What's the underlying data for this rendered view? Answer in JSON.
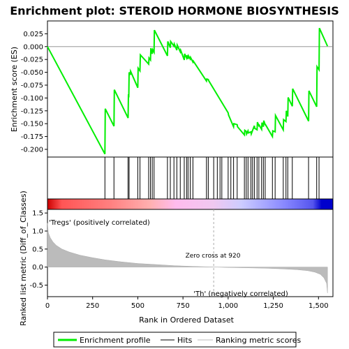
{
  "chart_data": {
    "type": "line",
    "title": "Enrichment plot: STEROID HORMONE BIOSYNTHESIS",
    "xlabel": "Rank in Ordered Dataset",
    "es_panel": {
      "ylabel": "Enrichment score (ES)",
      "ylim": [
        -0.215,
        0.05
      ],
      "yticks": [
        "0.025",
        "0.000",
        "-0.025",
        "-0.050",
        "-0.075",
        "-0.100",
        "-0.125",
        "-0.150",
        "-0.175",
        "-0.200"
      ],
      "series": [
        {
          "name": "Enrichment profile",
          "color": "#00ee00",
          "x": [
            0,
            318,
            320,
            368,
            370,
            446,
            448,
            450,
            452,
            458,
            460,
            500,
            502,
            512,
            514,
            560,
            562,
            570,
            572,
            580,
            582,
            590,
            592,
            664,
            666,
            680,
            682,
            700,
            702,
            716,
            718,
            735,
            737,
            757,
            759,
            770,
            772,
            778,
            780,
            790,
            792,
            805,
            807,
            880,
            882,
            890,
            892,
            1000,
            1002,
            1030,
            1032,
            1050,
            1052,
            1090,
            1092,
            1100,
            1102,
            1110,
            1112,
            1126,
            1128,
            1145,
            1147,
            1160,
            1162,
            1170,
            1172,
            1185,
            1187,
            1195,
            1197,
            1205,
            1207,
            1245,
            1247,
            1260,
            1262,
            1305,
            1307,
            1320,
            1322,
            1330,
            1332,
            1355,
            1357,
            1445,
            1447,
            1490,
            1492,
            1503,
            1505,
            1550
          ],
          "y": [
            0.0,
            -0.209,
            -0.121,
            -0.155,
            -0.084,
            -0.139,
            -0.093,
            -0.099,
            -0.05,
            -0.055,
            -0.048,
            -0.08,
            -0.042,
            -0.047,
            -0.016,
            -0.034,
            -0.022,
            -0.026,
            -0.003,
            -0.014,
            -0.006,
            -0.011,
            0.032,
            -0.018,
            0.01,
            -0.002,
            0.01,
            0.001,
            0.005,
            -0.007,
            0.003,
            -0.01,
            -0.007,
            -0.026,
            -0.014,
            -0.022,
            -0.017,
            -0.024,
            -0.018,
            -0.024,
            -0.021,
            -0.03,
            -0.028,
            -0.067,
            -0.063,
            -0.064,
            -0.066,
            -0.129,
            -0.133,
            -0.156,
            -0.15,
            -0.152,
            -0.156,
            -0.172,
            -0.163,
            -0.165,
            -0.17,
            -0.164,
            -0.168,
            -0.166,
            -0.17,
            -0.154,
            -0.159,
            -0.162,
            -0.147,
            -0.154,
            -0.153,
            -0.161,
            -0.148,
            -0.156,
            -0.144,
            -0.152,
            -0.152,
            -0.175,
            -0.164,
            -0.166,
            -0.134,
            -0.162,
            -0.142,
            -0.146,
            -0.125,
            -0.136,
            -0.099,
            -0.116,
            -0.082,
            -0.145,
            -0.086,
            -0.117,
            -0.039,
            -0.045,
            0.036,
            0.001
          ]
        }
      ]
    },
    "hits": {
      "name": "Hits",
      "x": [
        318,
        368,
        446,
        452,
        500,
        512,
        560,
        570,
        580,
        590,
        664,
        680,
        700,
        716,
        735,
        757,
        770,
        778,
        790,
        805,
        880,
        890,
        920,
        940,
        955,
        965,
        1000,
        1015,
        1030,
        1050,
        1090,
        1100,
        1110,
        1126,
        1135,
        1145,
        1160,
        1170,
        1185,
        1195,
        1205,
        1245,
        1260,
        1305,
        1320,
        1330,
        1355,
        1445,
        1490,
        1503
      ]
    },
    "rank_panel": {
      "ylabel": "Ranked list metric (Diff_of_Classes)",
      "ylim": [
        -0.82,
        1.6
      ],
      "yticks": [
        "1.5",
        "1.0",
        "0.5",
        "0.0",
        "-0.5"
      ],
      "series": [
        {
          "name": "Ranking metric scores",
          "color": "#bbbbbb",
          "x": [
            0,
            5,
            15,
            30,
            50,
            80,
            120,
            180,
            250,
            320,
            400,
            500,
            600,
            700,
            800,
            920,
            1000,
            1100,
            1200,
            1300,
            1380,
            1440,
            1480,
            1510,
            1530,
            1545,
            1550
          ],
          "values": [
            1.22,
            0.95,
            0.82,
            0.7,
            0.6,
            0.5,
            0.42,
            0.33,
            0.26,
            0.2,
            0.15,
            0.1,
            0.07,
            0.04,
            0.02,
            0.0,
            -0.01,
            -0.02,
            -0.03,
            -0.05,
            -0.07,
            -0.1,
            -0.14,
            -0.2,
            -0.3,
            -0.45,
            -0.72
          ]
        }
      ],
      "zero_cross_label": "Zero cross at 920",
      "zero_cross_x": 920,
      "positive_label": "'Tregs' (positively correlated)",
      "negative_label": "'Th' (negatively correlated)",
      "positive_label_color": "#ff0000",
      "negative_label_color": "#0000dd"
    },
    "x_axis": {
      "xlim": [
        0,
        1580
      ],
      "ticks": [
        0,
        250,
        500,
        750,
        1000,
        1250,
        1500
      ],
      "tick_labels": [
        "0",
        "250",
        "500",
        "750",
        "1,000",
        "1,250",
        "1,500"
      ]
    },
    "legend": {
      "placement": "bottom",
      "items": [
        {
          "label": "Enrichment profile",
          "color": "#00ee00",
          "style": "thick-line"
        },
        {
          "label": "Hits",
          "color": "#000000",
          "style": "line"
        },
        {
          "label": "Ranking metric scores",
          "color": "#bbbbbb",
          "style": "line"
        }
      ]
    },
    "colors": {
      "gradient_stops": [
        "#cc0000",
        "#ff5555",
        "#ffaaaa",
        "#ffccee",
        "#ddccff",
        "#7777ff",
        "#0000cc"
      ]
    }
  }
}
